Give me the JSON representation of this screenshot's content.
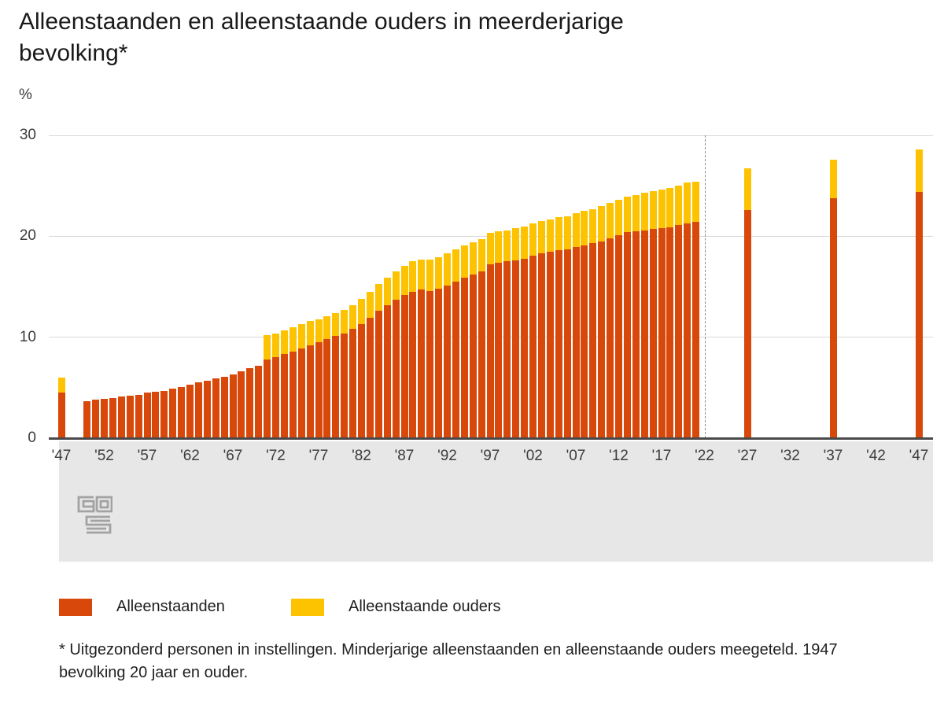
{
  "chart_data": {
    "type": "bar",
    "stacked": true,
    "title": "Alleenstaanden en alleenstaande ouders in meerderjarige bevolking*",
    "unit_label": "%",
    "ylim": [
      0,
      30
    ],
    "yticks": [
      0,
      10,
      20,
      30
    ],
    "grid": true,
    "legend_position": "bottom",
    "x_start_year": 1947,
    "x_end_year": 2047,
    "xtick_years": [
      1947,
      1952,
      1957,
      1962,
      1967,
      1972,
      1977,
      1982,
      1987,
      1992,
      1997,
      2002,
      2007,
      2012,
      2017,
      2022,
      2027,
      2032,
      2037,
      2042,
      2047
    ],
    "xtick_labels": [
      "'47",
      "'52",
      "'57",
      "'62",
      "'67",
      "'72",
      "'77",
      "'82",
      "'87",
      "'92",
      "'97",
      "'02",
      "'07",
      "'12",
      "'17",
      "'22",
      "'27",
      "'32",
      "'37",
      "'42",
      "'47"
    ],
    "forecast_divider_year": 2022,
    "years": [
      1947,
      1950,
      1951,
      1952,
      1953,
      1954,
      1955,
      1956,
      1957,
      1958,
      1959,
      1960,
      1961,
      1962,
      1963,
      1964,
      1965,
      1966,
      1967,
      1968,
      1969,
      1970,
      1971,
      1972,
      1973,
      1974,
      1975,
      1976,
      1977,
      1978,
      1979,
      1980,
      1981,
      1982,
      1983,
      1984,
      1985,
      1986,
      1987,
      1988,
      1989,
      1990,
      1991,
      1992,
      1993,
      1994,
      1995,
      1996,
      1997,
      1998,
      1999,
      2000,
      2001,
      2002,
      2003,
      2004,
      2005,
      2006,
      2007,
      2008,
      2009,
      2010,
      2011,
      2012,
      2013,
      2014,
      2015,
      2016,
      2017,
      2018,
      2019,
      2020,
      2021,
      2027,
      2037,
      2047
    ],
    "series": [
      {
        "name": "Alleenstaanden",
        "color": "#d9480b",
        "values": [
          4.5,
          3.7,
          3.8,
          3.9,
          4.0,
          4.1,
          4.2,
          4.3,
          4.5,
          4.6,
          4.7,
          4.9,
          5.1,
          5.3,
          5.5,
          5.7,
          5.9,
          6.1,
          6.3,
          6.6,
          6.9,
          7.2,
          7.8,
          8.0,
          8.3,
          8.6,
          8.9,
          9.2,
          9.5,
          9.8,
          10.1,
          10.4,
          10.8,
          11.3,
          11.9,
          12.6,
          13.2,
          13.7,
          14.2,
          14.5,
          14.7,
          14.6,
          14.8,
          15.1,
          15.5,
          15.9,
          16.2,
          16.5,
          17.2,
          17.4,
          17.5,
          17.6,
          17.8,
          18.1,
          18.3,
          18.5,
          18.6,
          18.7,
          18.9,
          19.1,
          19.3,
          19.5,
          19.8,
          20.1,
          20.4,
          20.5,
          20.6,
          20.7,
          20.8,
          20.9,
          21.1,
          21.3,
          21.4,
          22.6,
          23.8,
          24.4
        ]
      },
      {
        "name": "Alleenstaande ouders",
        "color": "#fdc300",
        "values": [
          1.5,
          0,
          0,
          0,
          0,
          0,
          0,
          0,
          0,
          0,
          0,
          0,
          0,
          0,
          0,
          0,
          0,
          0,
          0,
          0,
          0,
          0,
          2.4,
          2.4,
          2.4,
          2.4,
          2.4,
          2.4,
          2.3,
          2.3,
          2.3,
          2.3,
          2.4,
          2.5,
          2.6,
          2.7,
          2.7,
          2.8,
          2.9,
          3.0,
          3.0,
          3.1,
          3.1,
          3.2,
          3.2,
          3.2,
          3.2,
          3.2,
          3.1,
          3.1,
          3.1,
          3.2,
          3.2,
          3.2,
          3.2,
          3.2,
          3.3,
          3.3,
          3.4,
          3.4,
          3.4,
          3.5,
          3.5,
          3.5,
          3.5,
          3.6,
          3.7,
          3.8,
          3.8,
          3.9,
          3.9,
          4.0,
          4.0,
          4.1,
          3.8,
          4.2
        ]
      }
    ],
    "footnote": "* Uitgezonderd personen in instellingen. Minderjarige alleenstaanden en alleenstaande ouders meegeteld. 1947 bevolking 20 jaar en ouder.",
    "source_logo": "cbs"
  }
}
